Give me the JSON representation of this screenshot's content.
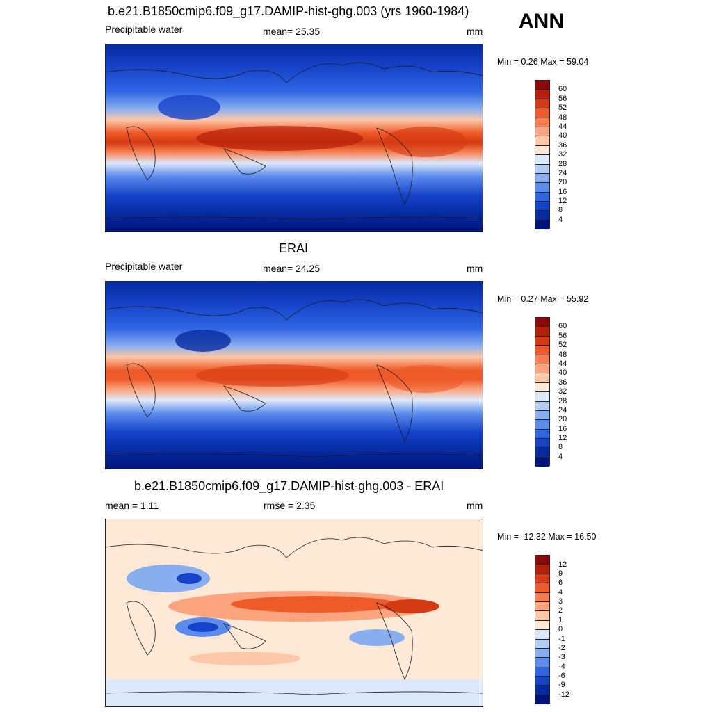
{
  "season": "ANN",
  "panels": [
    {
      "title": "b.e21.B1850cmip6.f09_g17.DAMIP-hist-ghg.003 (yrs 1960-1984)",
      "left_label": "Precipitable water",
      "center_label": "mean=  25.35",
      "units": "mm",
      "minmax": "Min =   0.26 Max =  59.04",
      "colorbar_labels": [
        "60",
        "56",
        "52",
        "48",
        "44",
        "40",
        "36",
        "32",
        "28",
        "24",
        "20",
        "16",
        "12",
        "8",
        "4"
      ],
      "colors": [
        "#8c0a0a",
        "#b51f0a",
        "#d63a12",
        "#ee5a28",
        "#f77f4f",
        "#fba47d",
        "#fdc8a8",
        "#fde9d6",
        "#dce9fb",
        "#b3cdf5",
        "#88aeef",
        "#5b8cec",
        "#3166e3",
        "#1543c9",
        "#062aa0",
        "#00137a"
      ]
    },
    {
      "title": "ERAI",
      "left_label": "Precipitable water",
      "center_label": "mean=  24.25",
      "units": "mm",
      "minmax": "Min =   0.27 Max =  55.92",
      "colorbar_labels": [
        "60",
        "56",
        "52",
        "48",
        "44",
        "40",
        "36",
        "32",
        "28",
        "24",
        "20",
        "16",
        "12",
        "8",
        "4"
      ],
      "colors": [
        "#8c0a0a",
        "#b51f0a",
        "#d63a12",
        "#ee5a28",
        "#f77f4f",
        "#fba47d",
        "#fdc8a8",
        "#fde9d6",
        "#dce9fb",
        "#b3cdf5",
        "#88aeef",
        "#5b8cec",
        "#3166e3",
        "#1543c9",
        "#062aa0",
        "#00137a"
      ]
    },
    {
      "title": "b.e21.B1850cmip6.f09_g17.DAMIP-hist-ghg.003 - ERAI",
      "left_label": "mean =    1.11",
      "center_label": "rmse =    2.35",
      "units": "mm",
      "minmax": "Min = -12.32 Max =  16.50",
      "colorbar_labels": [
        "12",
        "9",
        "6",
        "4",
        "3",
        "2",
        "1",
        "0",
        "-1",
        "-2",
        "-3",
        "-4",
        "-6",
        "-9",
        "-12"
      ],
      "colors": [
        "#8c0a0a",
        "#b51f0a",
        "#d63a12",
        "#ee5a28",
        "#f77f4f",
        "#fba47d",
        "#fdc8a8",
        "#fde9d6",
        "#dce9fb",
        "#b3cdf5",
        "#88aeef",
        "#5b8cec",
        "#3166e3",
        "#1543c9",
        "#062aa0",
        "#00137a"
      ]
    }
  ]
}
